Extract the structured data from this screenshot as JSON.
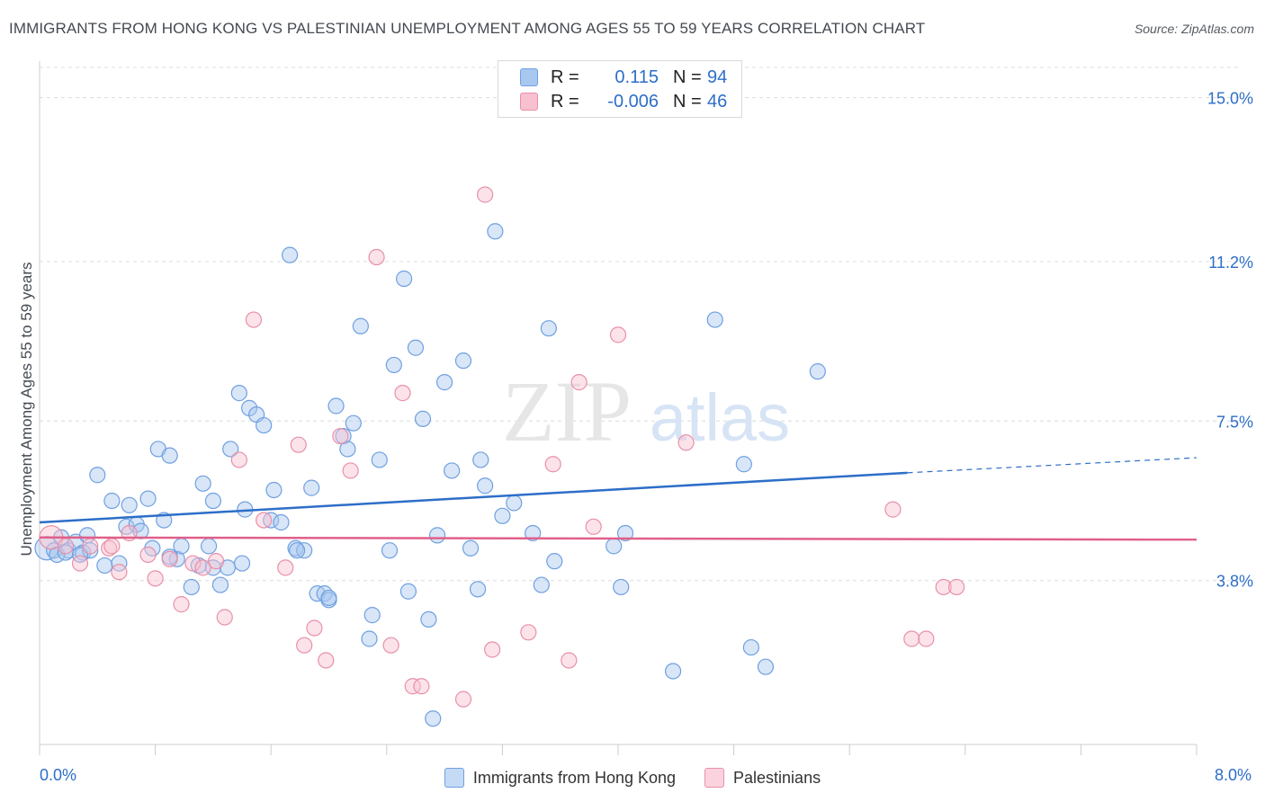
{
  "header": {
    "title": "IMMIGRANTS FROM HONG KONG VS PALESTINIAN UNEMPLOYMENT AMONG AGES 55 TO 59 YEARS CORRELATION CHART",
    "source": "Source: ZipAtlas.com"
  },
  "watermark": {
    "zip": "ZIP",
    "atlas": "atlas"
  },
  "legend": {
    "rows": [
      {
        "r_label": "R =",
        "r_value": "0.115",
        "n_label": "N =",
        "n_value": "94",
        "color": "#a8c8f0",
        "border": "#6fa0e0"
      },
      {
        "r_label": "R =",
        "r_value": "-0.006",
        "n_label": "N =",
        "n_value": "46",
        "color": "#f8c0d0",
        "border": "#e890a8"
      }
    ]
  },
  "chart_data": {
    "type": "scatter",
    "title": "IMMIGRANTS FROM HONG KONG VS PALESTINIAN UNEMPLOYMENT AMONG AGES 55 TO 59 YEARS CORRELATION CHART",
    "xlabel": "",
    "ylabel": "Unemployment Among Ages 55 to 59 years",
    "xlim": [
      0,
      8
    ],
    "ylim": [
      0,
      15.7
    ],
    "x_tick_labels": [
      "0.0%",
      "8.0%"
    ],
    "y_ticks": [
      3.8,
      7.5,
      11.2,
      15.0
    ],
    "y_tick_labels": [
      "3.8%",
      "7.5%",
      "11.2%",
      "15.0%"
    ],
    "grid": true,
    "legend_position": "bottom",
    "series": [
      {
        "name": "Immigrants from Hong Kong",
        "color": "#6fa0e0",
        "fill": "#a8c8f0",
        "trend": {
          "x": [
            0,
            6.0
          ],
          "y": [
            5.15,
            6.3
          ],
          "dashed_to": [
            8.0,
            6.65
          ]
        },
        "points": [
          [
            0.05,
            4.55
          ],
          [
            0.1,
            4.5
          ],
          [
            0.15,
            4.8
          ],
          [
            0.2,
            4.5
          ],
          [
            0.25,
            4.7
          ],
          [
            0.3,
            4.45
          ],
          [
            0.35,
            4.5
          ],
          [
            0.4,
            6.25
          ],
          [
            0.45,
            4.15
          ],
          [
            0.5,
            5.65
          ],
          [
            0.55,
            4.2
          ],
          [
            0.6,
            5.05
          ],
          [
            0.62,
            5.55
          ],
          [
            0.67,
            5.1
          ],
          [
            0.7,
            4.95
          ],
          [
            0.75,
            5.7
          ],
          [
            0.78,
            4.55
          ],
          [
            0.82,
            6.85
          ],
          [
            0.86,
            5.2
          ],
          [
            0.9,
            6.7
          ],
          [
            0.95,
            4.3
          ],
          [
            0.98,
            4.6
          ],
          [
            1.05,
            3.65
          ],
          [
            1.1,
            4.15
          ],
          [
            1.13,
            6.05
          ],
          [
            1.17,
            4.6
          ],
          [
            1.2,
            5.65
          ],
          [
            1.25,
            3.7
          ],
          [
            1.3,
            4.1
          ],
          [
            1.32,
            6.85
          ],
          [
            1.38,
            8.15
          ],
          [
            1.42,
            5.45
          ],
          [
            1.45,
            7.8
          ],
          [
            1.5,
            7.65
          ],
          [
            1.55,
            7.4
          ],
          [
            1.6,
            5.2
          ],
          [
            1.62,
            5.9
          ],
          [
            1.67,
            5.15
          ],
          [
            1.73,
            11.35
          ],
          [
            1.77,
            4.55
          ],
          [
            1.83,
            4.5
          ],
          [
            1.88,
            5.95
          ],
          [
            1.92,
            3.5
          ],
          [
            1.97,
            3.5
          ],
          [
            2.0,
            3.35
          ],
          [
            2.05,
            7.85
          ],
          [
            2.1,
            7.15
          ],
          [
            2.13,
            6.85
          ],
          [
            2.17,
            7.45
          ],
          [
            2.22,
            9.7
          ],
          [
            2.28,
            2.45
          ],
          [
            2.3,
            3.0
          ],
          [
            2.35,
            6.6
          ],
          [
            2.42,
            4.5
          ],
          [
            2.45,
            8.8
          ],
          [
            2.52,
            10.8
          ],
          [
            2.55,
            3.55
          ],
          [
            2.6,
            9.2
          ],
          [
            2.65,
            7.55
          ],
          [
            2.69,
            2.9
          ],
          [
            2.72,
            0.6
          ],
          [
            2.8,
            8.4
          ],
          [
            2.85,
            6.35
          ],
          [
            2.93,
            8.9
          ],
          [
            2.98,
            4.55
          ],
          [
            3.03,
            3.6
          ],
          [
            3.05,
            6.6
          ],
          [
            3.08,
            6.0
          ],
          [
            3.15,
            11.9
          ],
          [
            3.2,
            5.3
          ],
          [
            3.28,
            5.6
          ],
          [
            3.41,
            4.9
          ],
          [
            3.47,
            3.7
          ],
          [
            3.52,
            9.65
          ],
          [
            3.56,
            4.25
          ],
          [
            3.97,
            4.6
          ],
          [
            4.02,
            3.65
          ],
          [
            4.05,
            4.9
          ],
          [
            4.38,
            1.7
          ],
          [
            4.67,
            9.85
          ],
          [
            4.87,
            6.5
          ],
          [
            4.92,
            2.25
          ],
          [
            5.02,
            1.8
          ],
          [
            5.38,
            8.65
          ],
          [
            0.12,
            4.4
          ],
          [
            0.18,
            4.45
          ],
          [
            0.28,
            4.4
          ],
          [
            0.33,
            4.85
          ],
          [
            1.4,
            4.2
          ],
          [
            1.78,
            4.5
          ],
          [
            1.2,
            4.1
          ],
          [
            0.9,
            4.35
          ],
          [
            2.0,
            3.4
          ],
          [
            2.75,
            4.85
          ]
        ]
      },
      {
        "name": "Palestinians",
        "color": "#e890a8",
        "fill": "#f8c0d0",
        "trend": {
          "x": [
            0,
            8.0
          ],
          "y": [
            4.8,
            4.75
          ]
        },
        "points": [
          [
            0.08,
            4.8
          ],
          [
            0.18,
            4.6
          ],
          [
            0.28,
            4.2
          ],
          [
            0.35,
            4.6
          ],
          [
            0.48,
            4.55
          ],
          [
            0.55,
            4.0
          ],
          [
            0.62,
            4.9
          ],
          [
            0.75,
            4.4
          ],
          [
            0.8,
            3.85
          ],
          [
            0.9,
            4.3
          ],
          [
            0.98,
            3.25
          ],
          [
            1.06,
            4.2
          ],
          [
            1.13,
            4.1
          ],
          [
            1.22,
            4.25
          ],
          [
            1.28,
            2.95
          ],
          [
            1.38,
            6.6
          ],
          [
            1.48,
            9.85
          ],
          [
            1.55,
            5.2
          ],
          [
            1.7,
            4.1
          ],
          [
            1.79,
            6.95
          ],
          [
            1.83,
            2.3
          ],
          [
            1.9,
            2.7
          ],
          [
            1.98,
            1.95
          ],
          [
            2.08,
            7.15
          ],
          [
            2.15,
            6.35
          ],
          [
            2.33,
            11.3
          ],
          [
            2.43,
            2.3
          ],
          [
            2.51,
            8.15
          ],
          [
            2.58,
            1.35
          ],
          [
            2.64,
            1.35
          ],
          [
            2.93,
            1.05
          ],
          [
            3.08,
            12.75
          ],
          [
            3.13,
            2.2
          ],
          [
            3.38,
            2.6
          ],
          [
            3.55,
            6.5
          ],
          [
            3.66,
            1.95
          ],
          [
            3.73,
            8.4
          ],
          [
            3.83,
            5.05
          ],
          [
            4.0,
            9.5
          ],
          [
            4.47,
            7.0
          ],
          [
            5.9,
            5.45
          ],
          [
            6.03,
            2.45
          ],
          [
            6.13,
            2.45
          ],
          [
            6.25,
            3.65
          ],
          [
            6.34,
            3.65
          ],
          [
            0.5,
            4.6
          ]
        ]
      }
    ]
  }
}
